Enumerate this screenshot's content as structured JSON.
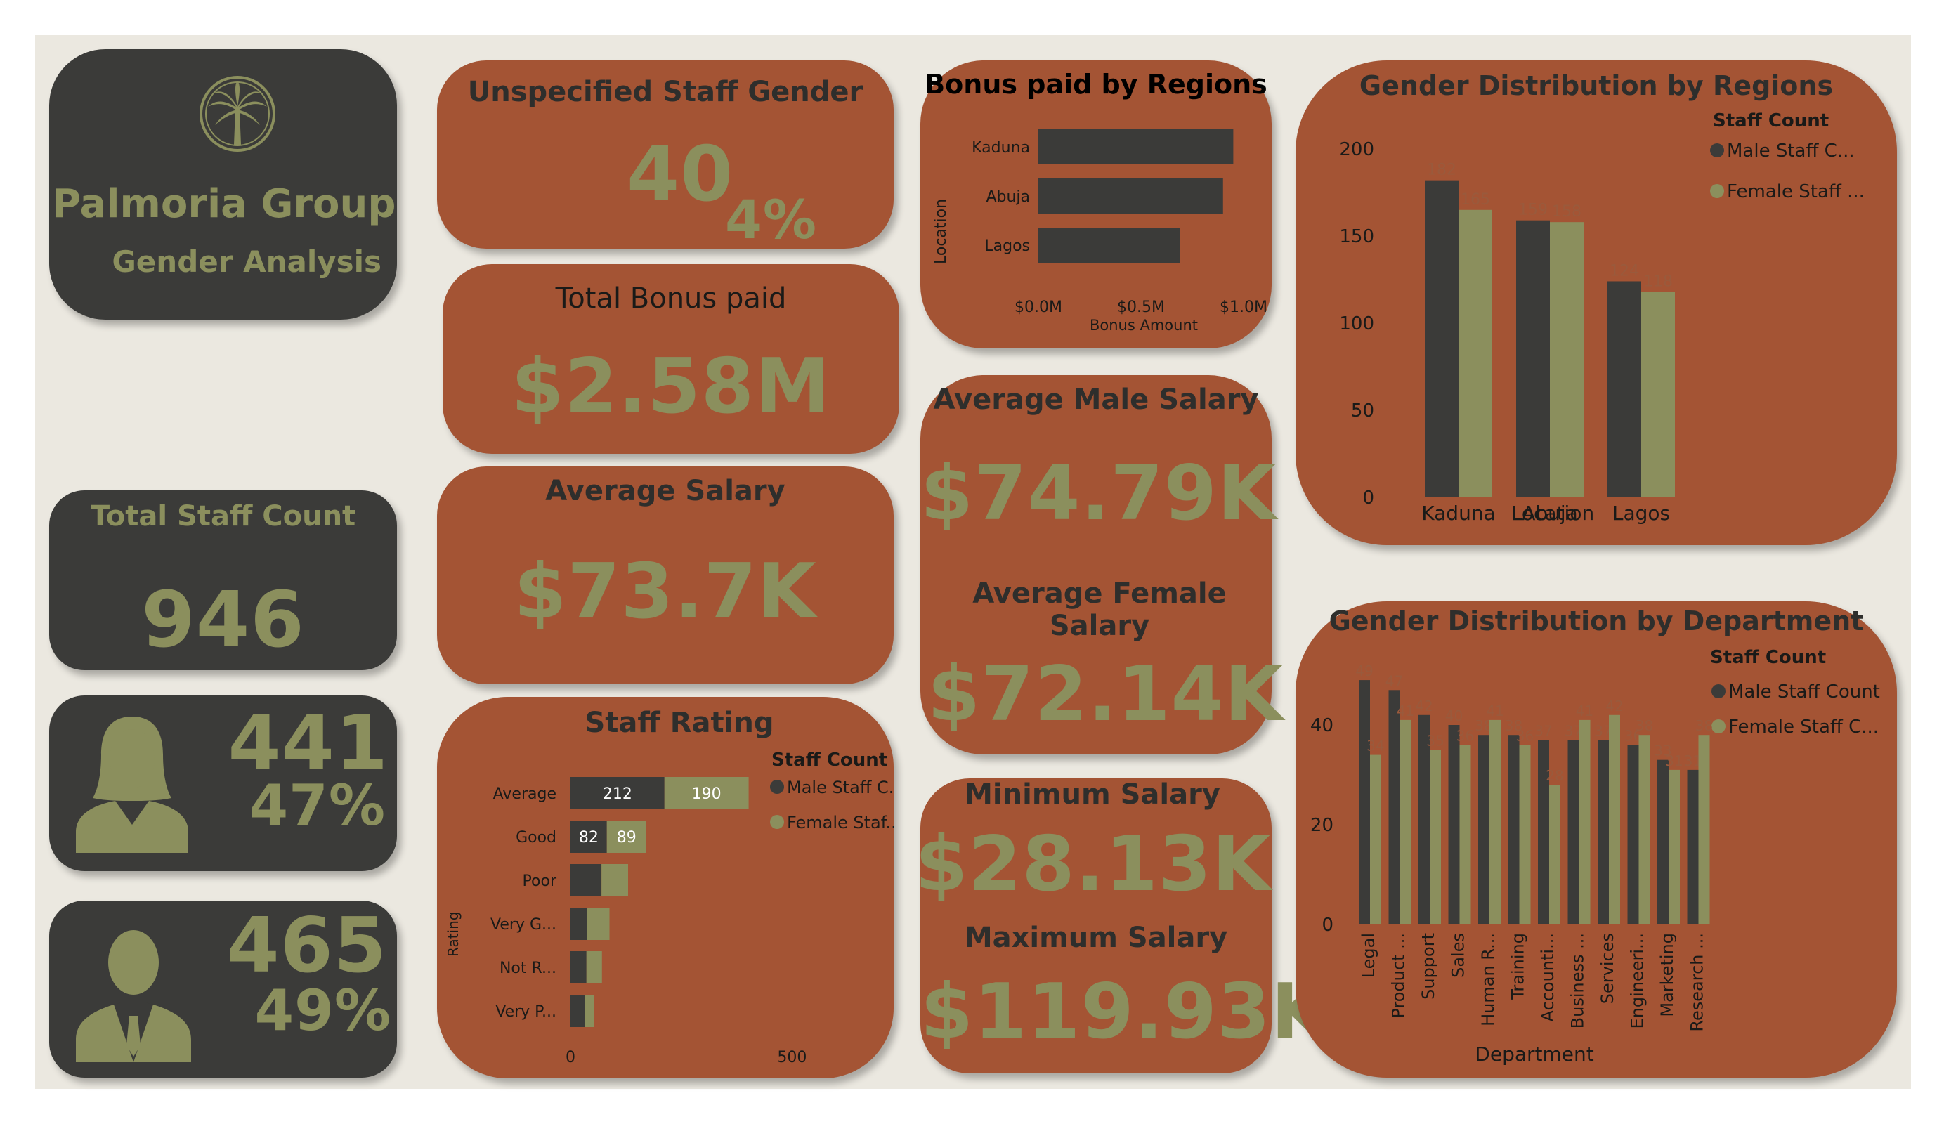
{
  "colors": {
    "background": "#ebe8e0",
    "dark": "#3b3b39",
    "rust": "#a45434",
    "olive": "#8b8f5d"
  },
  "brand": {
    "company": "Palmoria Group",
    "subtitle": "Gender Analysis",
    "logo_icon": "palm-tree-icon"
  },
  "kpis": {
    "unspecified": {
      "title": "Unspecified Staff Gender",
      "value": "40",
      "pct": "4%"
    },
    "total_bonus": {
      "title": "Total Bonus paid",
      "value": "$2.58M"
    },
    "avg_salary": {
      "title": "Average Salary",
      "value": "$73.7K"
    },
    "avg_male_salary": {
      "title": "Average Male Salary",
      "value": "$74.79K"
    },
    "avg_female_salary": {
      "title": "Average Female Salary",
      "value": "$72.14K"
    },
    "min_salary": {
      "title": "Minimum Salary",
      "value": "$28.13K"
    },
    "max_salary": {
      "title": "Maximum Salary",
      "value": "$119.93K"
    },
    "total_staff": {
      "title": "Total Staff Count",
      "value": "946"
    },
    "female": {
      "value": "441",
      "pct": "47%",
      "icon": "female-person-icon"
    },
    "male": {
      "value": "465",
      "pct": "49%",
      "icon": "male-person-icon"
    }
  },
  "chart_data": [
    {
      "id": "bonus-by-region",
      "type": "bar",
      "orientation": "horizontal",
      "title": "Bonus paid by Regions",
      "xlabel": "Bonus Amount",
      "ylabel": "Location",
      "categories": [
        "Kaduna",
        "Abuja",
        "Lagos"
      ],
      "values": [
        0.95,
        0.9,
        0.69
      ],
      "xlim": [
        0,
        1.0
      ],
      "xticks": [
        "$0.0M",
        "$0.5M",
        "$1.0M"
      ],
      "xtick_values": [
        0,
        0.5,
        1.0
      ]
    },
    {
      "id": "gender-by-region",
      "type": "bar",
      "title": "Gender Distribution by Regions",
      "xlabel": "Location",
      "ylabel": "",
      "legend_title": "Staff Count",
      "legend_labels": [
        "Male Staff C...",
        "Female Staff ..."
      ],
      "categories": [
        "Kaduna",
        "Abuja",
        "Lagos"
      ],
      "series": [
        {
          "name": "Male Staff Count",
          "values": [
            182,
            159,
            124
          ]
        },
        {
          "name": "Female Staff Count",
          "values": [
            165,
            158,
            118
          ]
        }
      ],
      "ylim": [
        0,
        200
      ],
      "yticks": [
        0,
        50,
        100,
        150,
        200
      ]
    },
    {
      "id": "gender-by-department",
      "type": "bar",
      "title": "Gender Distribution by Department",
      "xlabel": "Department",
      "ylabel": "",
      "legend_title": "Staff Count",
      "legend_labels": [
        "Male Staff Count",
        "Female Staff C..."
      ],
      "categories": [
        "Legal",
        "Product ...",
        "Support",
        "Sales",
        "Human R...",
        "Training",
        "Accounti...",
        "Business ...",
        "Services",
        "Engineeri...",
        "Marketing",
        "Research ..."
      ],
      "series": [
        {
          "name": "Male Staff Count",
          "values": [
            49,
            47,
            42,
            40,
            38,
            38,
            37,
            37,
            37,
            36,
            33,
            31
          ]
        },
        {
          "name": "Female Staff Count",
          "values": [
            34,
            41,
            35,
            36,
            41,
            36,
            28,
            41,
            42,
            38,
            31,
            38
          ]
        }
      ],
      "ylim": [
        0,
        50
      ],
      "yticks": [
        0,
        20,
        40
      ]
    },
    {
      "id": "staff-rating",
      "type": "bar",
      "orientation": "horizontal",
      "stacked": true,
      "title": "Staff Rating",
      "ylabel": "Rating",
      "legend_title": "Staff Count",
      "legend_labels": [
        "Male Staff C...",
        "Female Staf..."
      ],
      "categories": [
        "Average",
        "Good",
        "Poor",
        "Very G...",
        "Not R...",
        "Very P..."
      ],
      "series": [
        {
          "name": "Male Staff Count",
          "values": [
            212,
            82,
            70,
            38,
            36,
            33
          ]
        },
        {
          "name": "Female Staff Count",
          "values": [
            190,
            89,
            60,
            50,
            35,
            20
          ]
        }
      ],
      "data_labels": {
        "Average": [
          "212",
          "190"
        ],
        "Good": [
          "82",
          "89"
        ]
      },
      "xlim": [
        0,
        650
      ],
      "xticks": [
        "0",
        "500"
      ],
      "xtick_values": [
        0,
        500
      ]
    }
  ]
}
